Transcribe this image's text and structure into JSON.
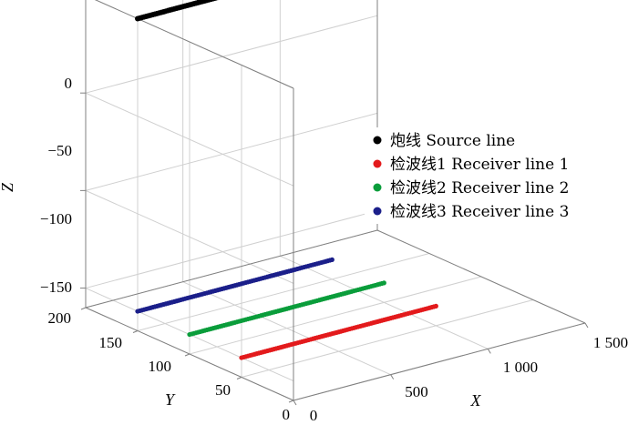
{
  "chart_data": {
    "type": "scatter",
    "projection": "3d",
    "grid": true,
    "legend_position": "right",
    "xlabel": "X",
    "ylabel": "Y",
    "zlabel": "Z",
    "xlim": [
      0,
      1500
    ],
    "ylim": [
      0,
      200
    ],
    "zlim": [
      -160,
      0
    ],
    "x_ticks": [
      0,
      500,
      1000,
      1500
    ],
    "x_tick_labels": [
      "0",
      "500",
      "1 000",
      "1 500"
    ],
    "y_ticks": [
      0,
      50,
      100,
      150,
      200
    ],
    "y_tick_labels": [
      "0",
      "50",
      "100",
      "150",
      "200"
    ],
    "z_ticks": [
      0,
      -50,
      -100,
      -150
    ],
    "z_tick_labels": [
      "0",
      "−50",
      "−100",
      "−150"
    ],
    "series": [
      {
        "name": "炮线 Source line",
        "color": "#000000",
        "x": [
          0,
          1000
        ],
        "y": [
          150,
          150
        ],
        "z": [
          0,
          0
        ]
      },
      {
        "name": "检波线1 Receiver line 1",
        "color": "#e31a1c",
        "x": [
          0,
          1000
        ],
        "y": [
          50,
          50
        ],
        "z": [
          -150,
          -150
        ]
      },
      {
        "name": "检波线2 Receiver line 2",
        "color": "#0a9d3b",
        "x": [
          0,
          1000
        ],
        "y": [
          100,
          100
        ],
        "z": [
          -150,
          -150
        ]
      },
      {
        "name": "检波线3 Receiver line 3",
        "color": "#1b1f8a",
        "x": [
          0,
          1000
        ],
        "y": [
          150,
          150
        ],
        "z": [
          -150,
          -150
        ]
      }
    ]
  }
}
